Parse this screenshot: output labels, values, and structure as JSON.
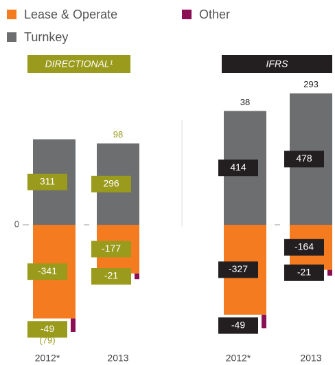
{
  "chart_data": [
    {
      "type": "bar",
      "stacked": true,
      "title": "DIRECTIONAL¹",
      "header_color": "#9a9a1c",
      "categories": [
        "2012*",
        "2013"
      ],
      "series": [
        {
          "name": "Lease & Operate",
          "color": "#f47b20",
          "values": [
            -341,
            -177
          ]
        },
        {
          "name": "Other",
          "color": "#8a0f55",
          "values": [
            -49,
            -21
          ]
        },
        {
          "name": "Turnkey",
          "color": "#6d6e70",
          "values": [
            311,
            296
          ]
        }
      ],
      "totals": {
        "values": [
          -79,
          98
        ],
        "value_labels": [
          "(79)",
          "98"
        ]
      },
      "ylim": [
        -450,
        500
      ],
      "yticks": [
        0
      ]
    },
    {
      "type": "bar",
      "stacked": true,
      "title": "IFRS",
      "header_color": "#231f20",
      "categories": [
        "2012*",
        "2013"
      ],
      "series": [
        {
          "name": "Lease & Operate",
          "color": "#f47b20",
          "values": [
            -327,
            -164
          ]
        },
        {
          "name": "Other",
          "color": "#8a0f55",
          "values": [
            -49,
            -21
          ]
        },
        {
          "name": "Turnkey",
          "color": "#6d6e70",
          "values": [
            414,
            478
          ]
        }
      ],
      "totals": {
        "values": [
          38,
          293
        ]
      },
      "ylim": [
        -450,
        500
      ]
    }
  ]
}
